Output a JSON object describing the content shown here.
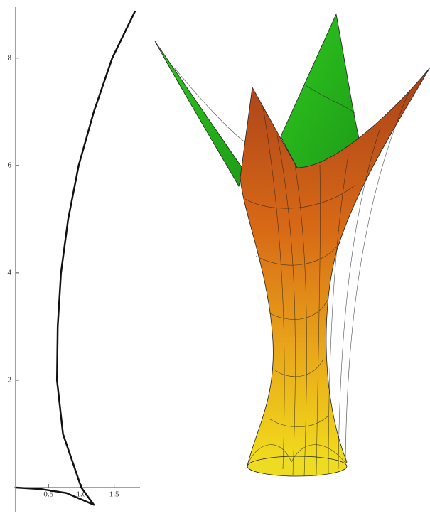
{
  "chart_data": {
    "type": "line",
    "x": [
      0,
      0.4,
      0.77,
      1.19,
      1.0,
      0.72,
      0.63,
      0.64,
      0.69,
      0.8,
      0.96,
      1.19,
      1.47,
      1.82
    ],
    "series": [
      {
        "color": "#111111",
        "values": [
          0,
          -0.03,
          -0.1,
          -0.32,
          0,
          1,
          2,
          3,
          4,
          5,
          6,
          7,
          8,
          8.88
        ]
      }
    ],
    "xlim": [
      0,
      1.85
    ],
    "ylim": [
      -0.45,
      8.95
    ],
    "xticks": [
      0.5,
      {
        "value": 1,
        "label": "1.0"
      },
      1.5
    ],
    "yticks": [
      2,
      4,
      6,
      8
    ]
  }
}
